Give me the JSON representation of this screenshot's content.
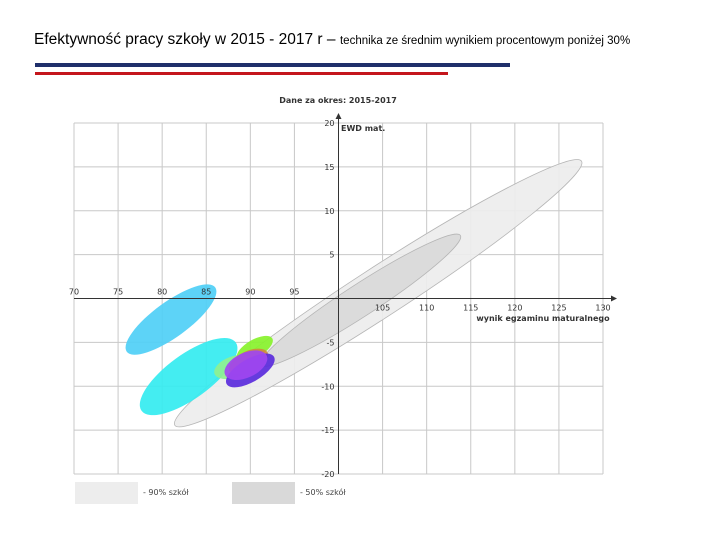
{
  "header": {
    "title": "Efektywność pracy szkoły w 2015 - 2017 r –",
    "subtitle": "technika ze średnim wynikiem procentowym poniżej 30%"
  },
  "colors": {
    "rule_top": "#1f2f6b",
    "rule_bottom": "#c4161c",
    "grid": "#c8c8c8",
    "axis": "#333333"
  },
  "chart_data": {
    "type": "scatter",
    "title": "Dane za okres: 2015-2017",
    "xlabel": "wynik egzaminu maturalnego",
    "ylabel": "EWD mat.",
    "xlim": [
      70,
      130
    ],
    "ylim": [
      -20,
      20
    ],
    "x_ticks": [
      70,
      75,
      80,
      85,
      90,
      95,
      100,
      105,
      110,
      115,
      120,
      125,
      130
    ],
    "y_ticks": [
      -20,
      -15,
      -10,
      -5,
      0,
      5,
      10,
      15,
      20
    ],
    "x_tick_labels_above": [
      "70",
      "75",
      "80",
      "85",
      "90",
      "95"
    ],
    "x_tick_labels_below": [
      "105",
      "110",
      "115",
      "120",
      "125",
      "130"
    ],
    "y_tick_labels": [
      "20",
      "15",
      "10",
      "5",
      "-5",
      "-10",
      "-15",
      "-20"
    ],
    "grid": true,
    "reference_areas": [
      {
        "name": "90% szkół",
        "cx": 104.5,
        "cy": 0.6,
        "rx": 27.5,
        "ry": 2.8,
        "angle_deg": -33,
        "color": "#ededed"
      },
      {
        "name": "50% szkół",
        "cx": 102.5,
        "cy": -0.2,
        "rx": 13.5,
        "ry": 1.8,
        "angle_deg": -33,
        "color": "#d9d9d9"
      }
    ],
    "ellipses": [
      {
        "cx": 81.0,
        "cy": -2.4,
        "rx": 6.2,
        "ry": 2.0,
        "angle_deg": -36,
        "color": "#4fcff6"
      },
      {
        "cx": 83.0,
        "cy": -8.9,
        "rx": 6.6,
        "ry": 2.5,
        "angle_deg": -36,
        "color": "#34ecf0"
      },
      {
        "cx": 88.1,
        "cy": -7.8,
        "rx": 2.3,
        "ry": 1.2,
        "angle_deg": -20,
        "color": "#8ff090"
      },
      {
        "cx": 90.5,
        "cy": -5.7,
        "rx": 2.3,
        "ry": 1.0,
        "angle_deg": -30,
        "color": "#88f22c"
      },
      {
        "cx": 89.8,
        "cy": -7.2,
        "rx": 2.4,
        "ry": 1.2,
        "angle_deg": -25,
        "color": "#d08a3c"
      },
      {
        "cx": 90.0,
        "cy": -8.2,
        "rx": 3.1,
        "ry": 1.3,
        "angle_deg": -30,
        "color": "#5a2bdc"
      },
      {
        "cx": 89.5,
        "cy": -7.6,
        "rx": 2.6,
        "ry": 1.4,
        "angle_deg": -25,
        "color": "#a046f0"
      }
    ],
    "legend": [
      {
        "label": "- 90% szkół",
        "color": "#ededed"
      },
      {
        "label": "- 50% szkół",
        "color": "#d9d9d9"
      }
    ],
    "legend_position": "bottom-left"
  }
}
